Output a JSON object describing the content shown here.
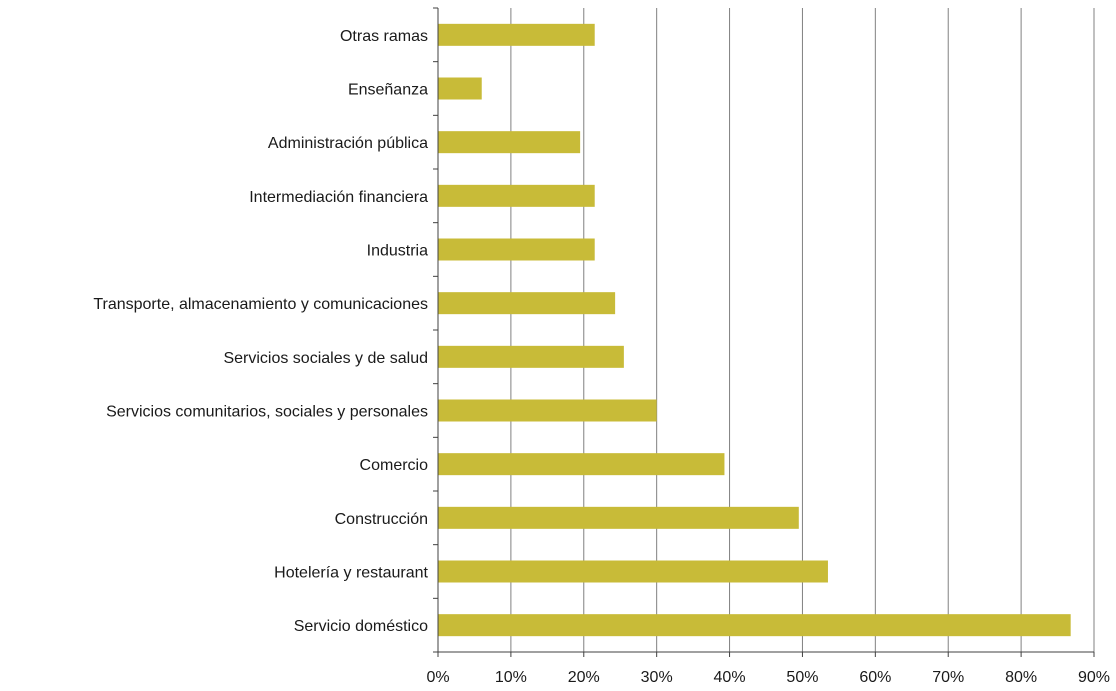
{
  "chart_data": {
    "type": "bar",
    "orientation": "horizontal",
    "categories": [
      "Otras ramas",
      "Enseñanza",
      "Administración pública",
      "Intermediación financiera",
      "Industria",
      "Transporte, almacenamiento y comunicaciones",
      "Servicios sociales y de salud",
      "Servicios comunitarios, sociales y personales",
      "Comercio",
      "Construcción",
      "Hotelería y restaurant",
      "Servicio doméstico"
    ],
    "values": [
      21.5,
      6,
      19.5,
      21.5,
      21.5,
      24.3,
      25.5,
      30,
      39.3,
      49.5,
      53.5,
      86.8
    ],
    "xlim": [
      0,
      90
    ],
    "xticks": [
      0,
      10,
      20,
      30,
      40,
      50,
      60,
      70,
      80,
      90
    ],
    "xtick_labels": [
      "0%",
      "10%",
      "20%",
      "30%",
      "40%",
      "50%",
      "60%",
      "70%",
      "80%",
      "90%"
    ],
    "title": "",
    "xlabel": "",
    "ylabel": "",
    "grid": "vertical",
    "legend": "none",
    "bar_color": "#c8bb38",
    "grid_color": "#808080",
    "axis_color": "#404040"
  }
}
